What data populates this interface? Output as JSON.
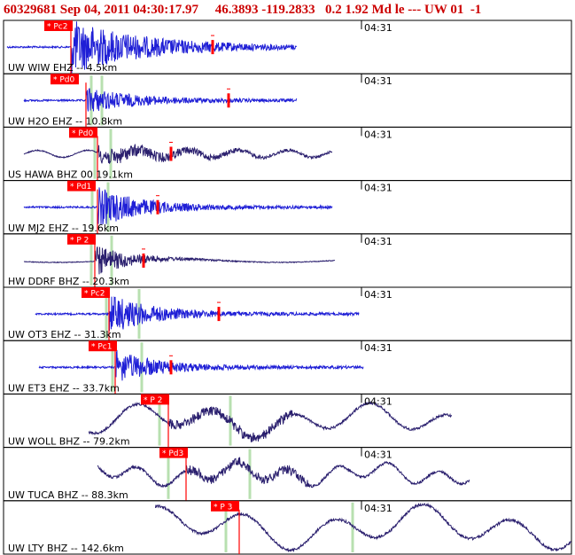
{
  "header": {
    "event_id": "60329681",
    "datetime": "Sep 04, 2011 04:30:17.97",
    "lat": "46.3893",
    "lon": "-119.2833",
    "depth": "0.2",
    "magnitude": "1.92",
    "mag_type": "Md",
    "loc_code": "le ---",
    "network": "UW",
    "version": "01",
    "extra": "-1"
  },
  "panels": [
    {
      "label": "UW WIW EHZ -- 4.5km",
      "time": "04:31",
      "pick": "* Pc2",
      "color": "#1f1fd6"
    },
    {
      "label": "UW H2O EHZ -- 10.8km",
      "time": "04:31",
      "pick": "* Pd0",
      "color": "#1f1fd6"
    },
    {
      "label": "US HAWA BHZ 00 19.1km",
      "time": "04:31",
      "pick": "* Pd0",
      "color": "#2a1f6e"
    },
    {
      "label": "UW MJ2 EHZ -- 19.6km",
      "time": "04:31",
      "pick": "* Pd1",
      "color": "#1f1fd6"
    },
    {
      "label": "HW DDRF BHZ -- 20.3km",
      "time": "04:31",
      "pick": "* P 2",
      "color": "#2a1f6e"
    },
    {
      "label": "UW OT3 EHZ -- 31.3km",
      "time": "04:31",
      "pick": "* Pc2",
      "color": "#1f1fd6"
    },
    {
      "label": "UW ET3 EHZ -- 33.7km",
      "time": "04:31",
      "pick": "* Pc1",
      "color": "#1f1fd6"
    },
    {
      "label": "UW WOLL BHZ -- 79.2km",
      "time": "04:31",
      "pick": "* P 2",
      "color": "#2a1f6e"
    },
    {
      "label": "UW TUCA BHZ -- 88.3km",
      "time": "04:31",
      "pick": "* Pd3",
      "color": "#2a1f6e"
    },
    {
      "label": "UW LTY BHZ -- 142.6km",
      "time": "04:31",
      "pick": "* P 3",
      "color": "#2a1f6e"
    }
  ],
  "colors": {
    "header_text": "#cc0000",
    "pick_box": "#ff0000",
    "pick_text": "#ffffff",
    "gridline": "#000000",
    "theoretical_marker": "#b8e0b0"
  }
}
